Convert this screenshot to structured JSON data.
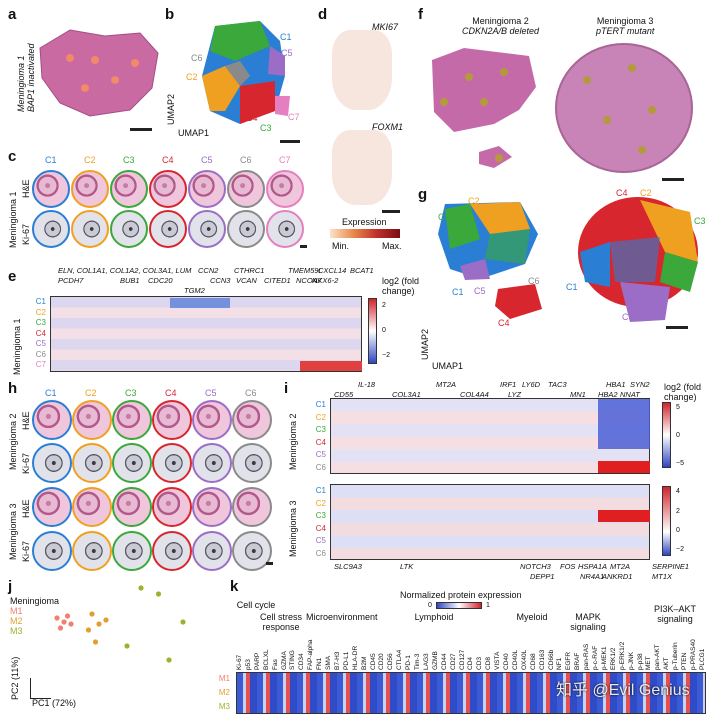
{
  "panels": {
    "a": "a",
    "b": "b",
    "c": "c",
    "d": "d",
    "e": "e",
    "f": "f",
    "g": "g",
    "h": "h",
    "i": "i",
    "j": "j",
    "k": "k"
  },
  "panel_a": {
    "label1": "Meningioma 1",
    "label2": "BAP1 inactivated"
  },
  "panel_b": {
    "clusters": [
      "C1",
      "C2",
      "C3",
      "C4",
      "C5",
      "C6",
      "C7"
    ],
    "umap2": "UMAP2",
    "umap1": "UMAP1"
  },
  "panel_c": {
    "clusters": [
      "C1",
      "C2",
      "C3",
      "C4",
      "C5",
      "C6",
      "C7"
    ],
    "row1": "H&E",
    "row2": "Ki-67",
    "side": "Meningioma 1"
  },
  "panel_d": {
    "gene1": "MKI67",
    "gene2": "FOXM1",
    "legend_title": "Expression",
    "min": "Min.",
    "max": "Max."
  },
  "panel_e": {
    "side": "Meningioma 1",
    "rows": [
      "C1",
      "C2",
      "C3",
      "C4",
      "C5",
      "C6",
      "C7"
    ],
    "genes_top": [
      "ELN, COL1A1, COL1A2, COL3A1, LUM",
      "PCDH7",
      "BUB1",
      "CDC20",
      "TGM2",
      "CCN2",
      "CCN3",
      "CTHRC1",
      "VCAN",
      "CITED1",
      "TMEM59L",
      "NCOA7",
      "CXCL14",
      "NKX6-2",
      "BCAT1"
    ],
    "legend_title": "log2 (fold change)",
    "ticks": [
      "2",
      "0",
      "−2"
    ]
  },
  "panel_f": {
    "m2": "Meningioma 2",
    "m2sub": "CDKN2A/B deleted",
    "m3": "Meningioma 3",
    "m3sub": "pTERT mutant"
  },
  "panel_g": {
    "left_clusters": [
      "C1",
      "C2",
      "C3",
      "C4",
      "C5",
      "C6"
    ],
    "right_clusters": [
      "C1",
      "C2",
      "C3",
      "C4",
      "C5"
    ],
    "umap2": "UMAP2",
    "umap1": "UMAP1"
  },
  "panel_h": {
    "clusters": [
      "C1",
      "C2",
      "C3",
      "C4",
      "C5",
      "C6"
    ],
    "m2": "Meningioma 2",
    "m3": "Meningioma 3",
    "he": "H&E",
    "ki": "Ki-67"
  },
  "panel_i": {
    "m2": "Meningioma 2",
    "m3": "Meningioma 3",
    "rows": [
      "C1",
      "C2",
      "C3",
      "C4",
      "C5",
      "C6"
    ],
    "genes_top": [
      "CD55",
      "IL-18",
      "COL3A1",
      "MT2A",
      "COL4A4",
      "IRF1",
      "LY6D",
      "LYZ",
      "TAC3",
      "MN1",
      "HBA1",
      "HBA2",
      "SYN2",
      "NNAT"
    ],
    "genes_bottom": [
      "SLC9A3",
      "LTK",
      "NOTCH3",
      "DEPP1",
      "FOS",
      "HSPA1A",
      "NR4A1",
      "MT2A",
      "ANKRD1",
      "SERPINE1",
      "MT1X"
    ],
    "legend_title": "log2 (fold change)",
    "ticks_top": [
      "5",
      "0",
      "−5"
    ],
    "ticks_bottom": [
      "4",
      "2",
      "0",
      "−2"
    ]
  },
  "panel_j": {
    "title": "Meningioma",
    "groups": [
      "M1",
      "M2",
      "M3"
    ],
    "pc2": "PC2 (11%)",
    "pc1": "PC1 (72%)"
  },
  "panel_k": {
    "legend_title": "Normalized protein expression",
    "legend_min": "0",
    "legend_max": "1",
    "groups": [
      "Cell cycle",
      "Cell stress response",
      "Microenvironment",
      "Lymphoid",
      "Myeloid",
      "MAPK signaling",
      "PI3K–AKT signaling"
    ],
    "rows": [
      "M1",
      "M2",
      "M3"
    ],
    "proteins": [
      "Ki-67",
      "p53",
      "PARP",
      "BCLXL",
      "Fas",
      "GZMA",
      "STING",
      "CD34",
      "FAP-alpha",
      "FN1",
      "SMA",
      "B7-H3",
      "PD-L1",
      "HLA-DR",
      "B2M",
      "CD45",
      "CD20",
      "CD56",
      "CTLA4",
      "PD-1",
      "Tim-3",
      "LAG3",
      "GZMB",
      "CD44",
      "CD27",
      "CD127",
      "CD4",
      "CD3",
      "CD8",
      "VISTA",
      "CD40",
      "CD40L",
      "OX40L",
      "CD68",
      "CD163",
      "CD66b",
      "NF1",
      "EGFR",
      "BRAF",
      "pan-RAS",
      "p-c-RAF",
      "p-MEK1",
      "ERK1/2",
      "p-ERK1/2",
      "p-JNK",
      "p-p38",
      "MET",
      "pan-AKT",
      "AKT",
      "p-Tuberin",
      "PTEN",
      "p-PRAS40",
      "PLCG1"
    ]
  },
  "watermark": "知乎 @Evil Genius",
  "colors": {
    "C1": "#2a7fd4",
    "C2": "#f0a020",
    "C3": "#3aa83a",
    "C4": "#d8262e",
    "C5": "#9b6dc6",
    "C6": "#8a8a8a",
    "C7": "#e57fc0",
    "M1": "#f08070",
    "M2": "#e0a030",
    "M3": "#a0b030"
  }
}
